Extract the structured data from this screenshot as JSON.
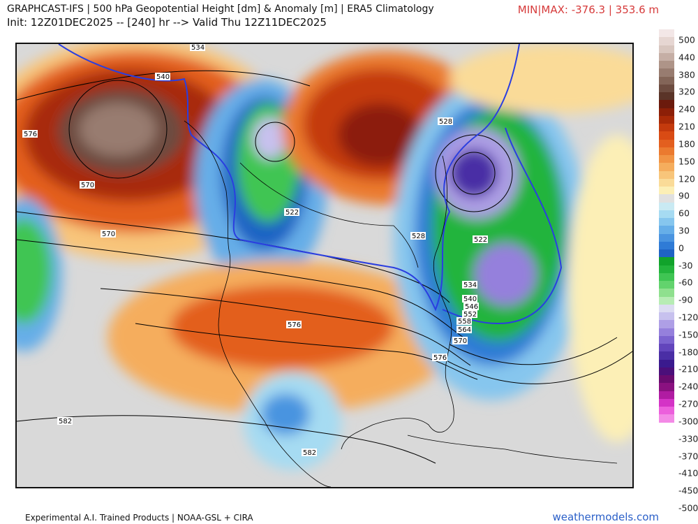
{
  "header": {
    "title": "GRAPHCAST-IFS | 500 hPa Geopotential Height [dm] & Anomaly [m] | ERA5 Climatology",
    "subtitle": "Init: 12Z01DEC2025 -- [240] hr --> Valid Thu 12Z11DEC2025",
    "minmax": "MIN|MAX: -376.3 | 353.6 m"
  },
  "map": {
    "region": "North America",
    "contour_labels": [
      "534",
      "540",
      "576",
      "570",
      "570",
      "522",
      "528",
      "528",
      "522",
      "534",
      "540",
      "546",
      "552",
      "558",
      "564",
      "570",
      "576",
      "576",
      "582",
      "582"
    ]
  },
  "colorbar": {
    "ticks": [
      "500",
      "440",
      "380",
      "320",
      "240",
      "210",
      "180",
      "150",
      "120",
      "90",
      "60",
      "30",
      "0",
      "-30",
      "-60",
      "-90",
      "-120",
      "-150",
      "-180",
      "-210",
      "-240",
      "-270",
      "-300",
      "-330",
      "-370",
      "-410",
      "-450",
      "-500"
    ],
    "colors": [
      "#f3e7e7",
      "#e6d6d2",
      "#d8c6bf",
      "#c5aea5",
      "#ae9488",
      "#987c70",
      "#836558",
      "#6d4c40",
      "#5a3428",
      "#6b1a0c",
      "#8c1f07",
      "#a82a07",
      "#c43a0d",
      "#d94b14",
      "#e35f1f",
      "#eb7a2f",
      "#f19444",
      "#f5ad5d",
      "#f8c57a",
      "#fadb98",
      "#fcefb6",
      "#e0e0e0",
      "#c9eaf3",
      "#a6dbf2",
      "#86c6ee",
      "#66aee8",
      "#4a94e0",
      "#2f7bd6",
      "#1f63c4",
      "#11a32b",
      "#23b43c",
      "#3fc553",
      "#62d36d",
      "#8fe08e",
      "#b7ecb4",
      "#dcdcf2",
      "#c7c1ee",
      "#ae9fe6",
      "#9580dc",
      "#7b63cf",
      "#6245bc",
      "#4a2ea5",
      "#3a1a8e",
      "#4b0f7a",
      "#6a0b6f",
      "#8a1180",
      "#b01ca2",
      "#d433c6",
      "#ec5fdc",
      "#f38ae6"
    ]
  },
  "footer": {
    "left": "Experimental A.I. Trained Products | NOAA-GSL + CIRA",
    "right": "weathermodels.com"
  }
}
